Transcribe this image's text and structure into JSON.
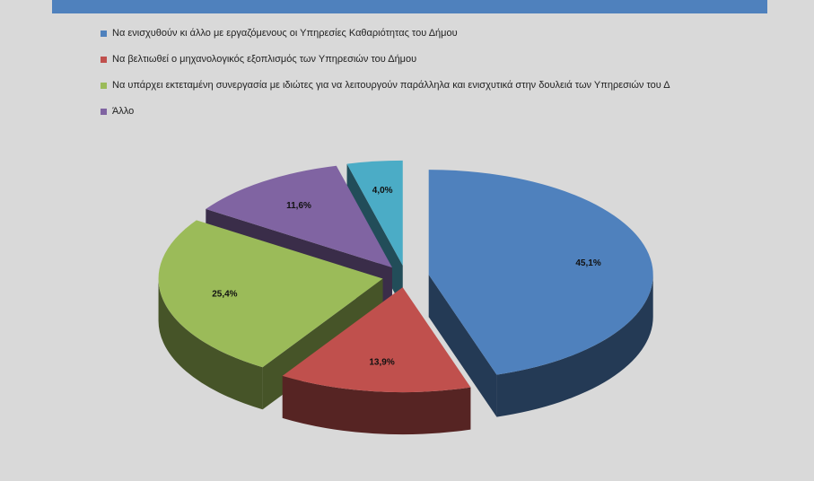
{
  "chart_data": {
    "type": "pie",
    "categories": [
      "Να ενισχυθούν κι άλλο με εργαζόμενους οι Υπηρεσίες Καθαριότητας του Δήμου",
      "Να βελτιωθεί ο μηχανολογικός εξοπλισμός των Υπηρεσιών του Δήμου",
      "Να υπάρχει εκτεταμένη συνεργασία με ιδιώτες για να λειτουργούν παράλληλα και ενισχυτικά στην δουλειά των Υπηρεσιών του Δ",
      "Άλλο",
      null
    ],
    "values": [
      45.1,
      13.9,
      25.4,
      11.6,
      4.0
    ],
    "value_labels": [
      "45,1%",
      "13,9%",
      "25,4%",
      "11,6%",
      "4,0%"
    ],
    "colors": [
      "#4f81bd",
      "#c0504d",
      "#9bbb59",
      "#8064a2",
      "#4bacc6"
    ],
    "legend": "top"
  }
}
